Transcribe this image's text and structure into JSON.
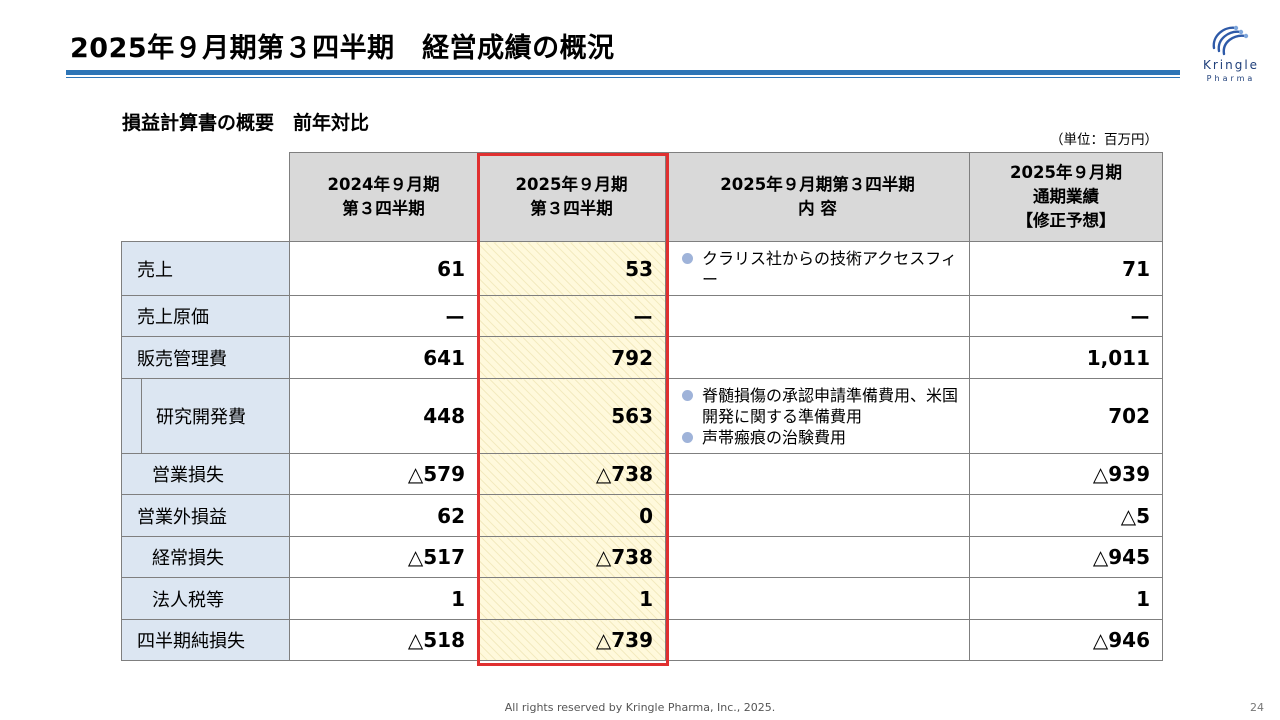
{
  "slide": {
    "title": "2025年９月期第３四半期　経営成績の概況",
    "subtitle": "損益計算書の概要　前年対比",
    "unit": "（単位：百万円）",
    "footer": "All rights reserved by Kringle Pharma, Inc., 2025.",
    "page_number": "24",
    "accent_color": "#2e75b6",
    "highlight_color": "#e03030"
  },
  "logo": {
    "name": "Kringle",
    "sub": "Pharma",
    "icon": "kringle-swirl-logo"
  },
  "table": {
    "headers": [
      [
        "2024年９月期",
        "第３四半期"
      ],
      [
        "2025年９月期",
        "第３四半期"
      ],
      [
        "2025年９月期第３四半期",
        "内 容"
      ],
      [
        "2025年９月期",
        "通期業績",
        "【修正予想】"
      ]
    ],
    "rows": [
      {
        "label": "売上",
        "prev": "61",
        "curr": "53",
        "notes": [
          "クラリス社からの技術アクセスフィー"
        ],
        "forecast": "71"
      },
      {
        "label": "売上原価",
        "prev": "ー",
        "curr": "ー",
        "notes": [],
        "forecast": "ー"
      },
      {
        "label": "販売管理費",
        "prev": "641",
        "curr": "792",
        "notes": [],
        "forecast": "1,011"
      },
      {
        "label": "研究開発費",
        "prev": "448",
        "curr": "563",
        "notes": [
          "脊髄損傷の承認申請準備費用、米国開発に関する準備費用",
          "声帯瘢痕の治験費用"
        ],
        "forecast": "702"
      },
      {
        "label": "営業損失",
        "prev": "△579",
        "curr": "△738",
        "notes": [],
        "forecast": "△939"
      },
      {
        "label": "営業外損益",
        "prev": "62",
        "curr": "0",
        "notes": [],
        "forecast": "△5"
      },
      {
        "label": "経常損失",
        "prev": "△517",
        "curr": "△738",
        "notes": [],
        "forecast": "△945"
      },
      {
        "label": "法人税等",
        "prev": "1",
        "curr": "1",
        "notes": [],
        "forecast": "1"
      },
      {
        "label": "四半期純損失",
        "prev": "△518",
        "curr": "△739",
        "notes": [],
        "forecast": "△946"
      }
    ]
  }
}
